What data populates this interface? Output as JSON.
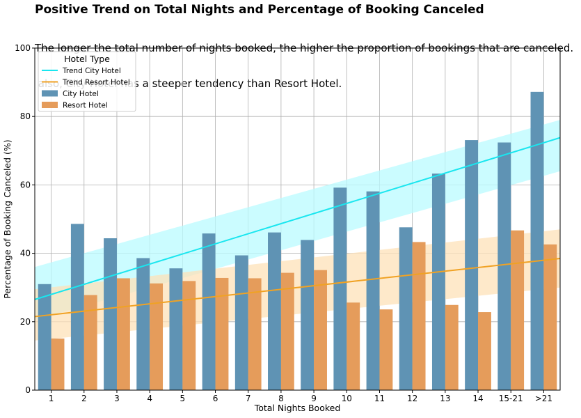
{
  "chart_data": {
    "type": "bar",
    "title": "Positive Trend on Total Nights and Percentage of Booking Canceled",
    "subtitle_lines": [
      "The longer the total number of nights booked, the higher the proportion of bookings that are canceled.",
      " also, City Hotel has a steeper tendency than Resort Hotel."
    ],
    "xlabel": "Total Nights Booked",
    "ylabel": "Percentage of Booking Canceled (%)",
    "ylim": [
      0,
      100
    ],
    "yticks": [
      0,
      20,
      40,
      60,
      80,
      100
    ],
    "grid": true,
    "legend_title": "Hotel Type",
    "legend_position": "top-left",
    "categories": [
      "1",
      "2",
      "3",
      "4",
      "5",
      "6",
      "7",
      "8",
      "9",
      "10",
      "11",
      "12",
      "13",
      "14",
      "15-21",
      ">21"
    ],
    "series": [
      {
        "name": "City Hotel",
        "color": "#5f93b4",
        "values": [
          31.0,
          48.6,
          44.4,
          38.6,
          35.6,
          45.8,
          39.4,
          46.1,
          43.9,
          59.2,
          58.1,
          47.6,
          63.3,
          73.1,
          72.4,
          87.2
        ]
      },
      {
        "name": "Resort Hotel",
        "color": "#e59c5b",
        "values": [
          15.1,
          27.8,
          32.7,
          31.2,
          31.9,
          32.8,
          32.7,
          34.3,
          35.1,
          25.6,
          23.6,
          43.3,
          24.9,
          22.8,
          46.7,
          42.6
        ]
      }
    ],
    "trends": [
      {
        "name": "Trend City Hotel",
        "color": "#19e6ef",
        "band_color": "#b9fbff",
        "start": 26.5,
        "end": 73.8,
        "band_lower": [
          20.5,
          64.0
        ],
        "band_upper": [
          36.0,
          79.0
        ]
      },
      {
        "name": "Trend Resort Hotel",
        "color": "#f0a224",
        "band_color": "#fde2b8",
        "start": 21.5,
        "end": 38.5,
        "band_lower": [
          14.5,
          30.0
        ],
        "band_upper": [
          29.5,
          47.0
        ]
      }
    ]
  }
}
